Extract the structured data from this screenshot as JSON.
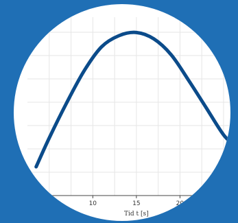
{
  "page": {
    "background_color": "#1f6fb5"
  },
  "chart_data": {
    "type": "line",
    "title": "",
    "xlabel": "Tid t [s]",
    "ylabel": "",
    "xlim": [
      2.5,
      26.5
    ],
    "ylim": [
      0,
      1
    ],
    "x_ticks": [
      10,
      15,
      20
    ],
    "x_tick_labels": [
      "10",
      "15",
      "20"
    ],
    "grid": true,
    "line_color": "#0b4b8a",
    "series": [
      {
        "x": [
          3.5,
          5,
          7,
          9,
          11,
          13,
          15,
          17,
          19,
          21,
          23,
          25,
          26.5
        ],
        "y": [
          0.18,
          0.36,
          0.58,
          0.78,
          0.93,
          1.0,
          1.02,
          0.98,
          0.88,
          0.72,
          0.55,
          0.38,
          0.3
        ]
      }
    ]
  }
}
